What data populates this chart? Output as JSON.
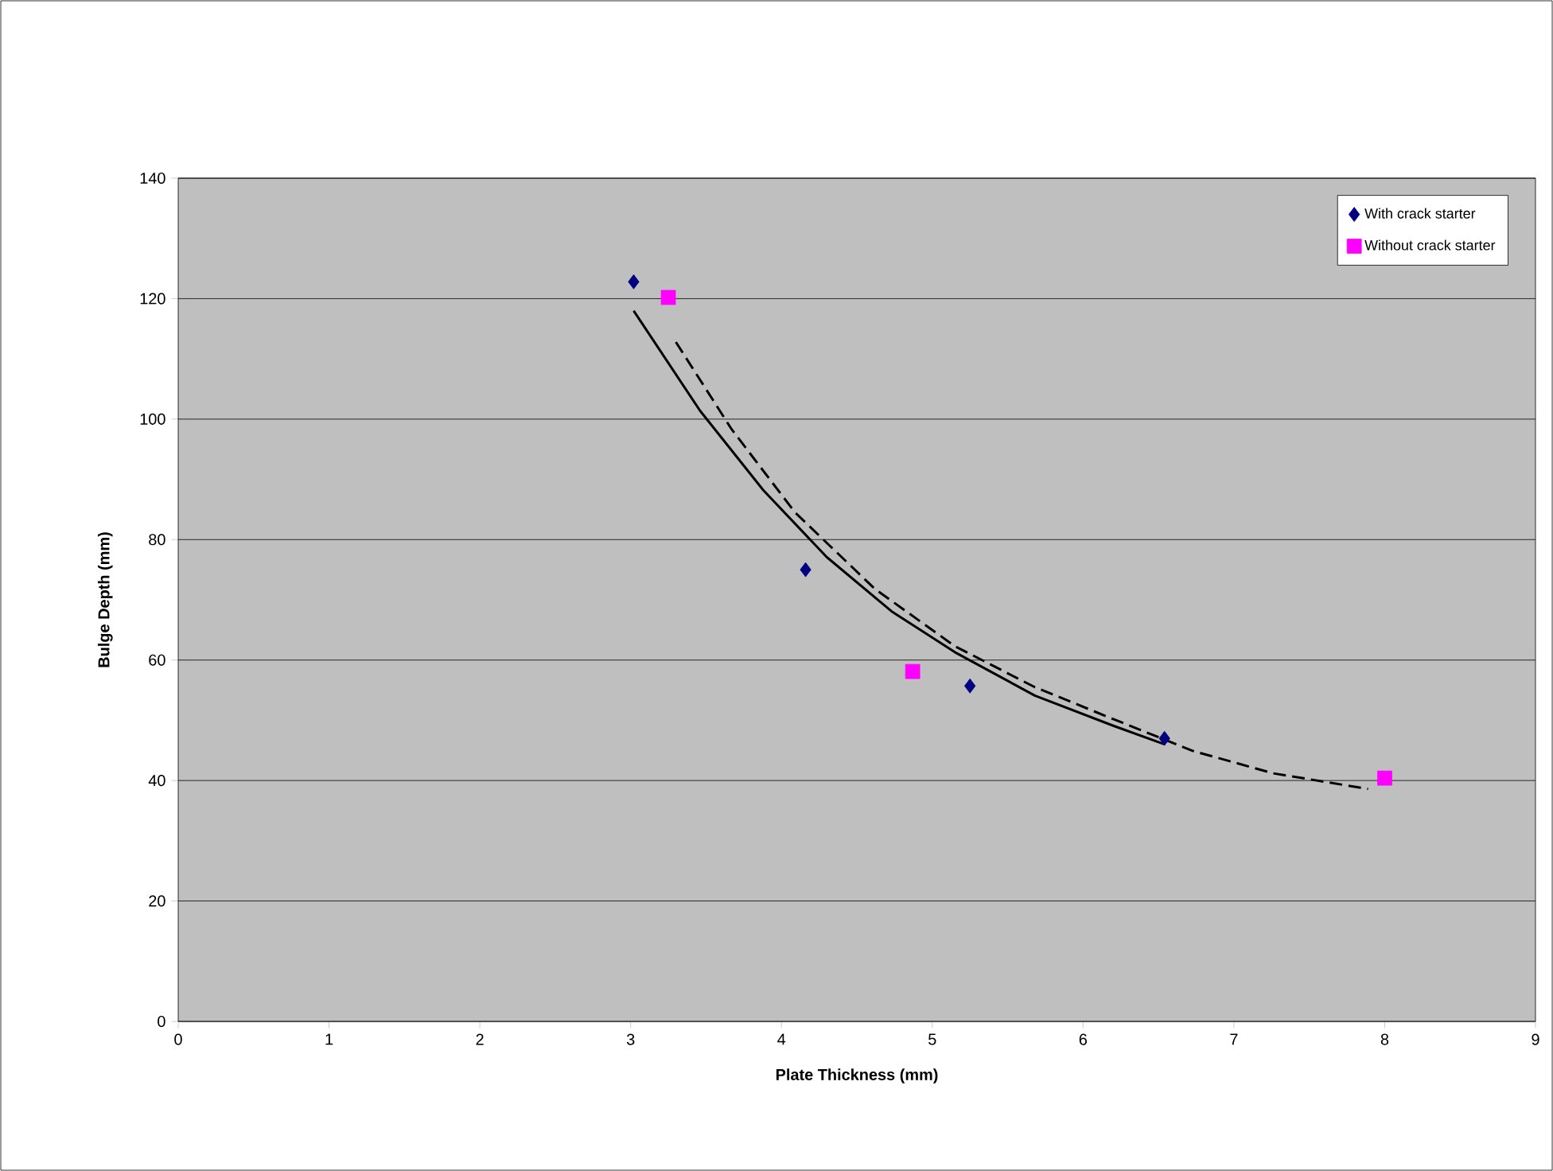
{
  "chart_data": {
    "type": "scatter",
    "xlabel": "Plate Thickness (mm)",
    "ylabel": "Bulge Depth (mm)",
    "xlim": [
      0,
      9
    ],
    "ylim": [
      0,
      140
    ],
    "xticks": [
      0,
      1,
      2,
      3,
      4,
      5,
      6,
      7,
      8,
      9
    ],
    "yticks": [
      0,
      20,
      40,
      60,
      80,
      100,
      120,
      140
    ],
    "grid": "y",
    "legend": "top right",
    "series": [
      {
        "name": "With crack starter",
        "color": "#000080",
        "marker": "diamond",
        "x": [
          3.02,
          4.16,
          5.25,
          6.54
        ],
        "values": [
          122.8,
          75,
          55.7,
          47
        ]
      },
      {
        "name": "Without crack starter",
        "color": "#ff00ff",
        "marker": "square",
        "x": [
          3.25,
          4.87,
          8.0
        ],
        "values": [
          120.2,
          58.1,
          40.4
        ]
      },
      {
        "type": "line",
        "color": "#000000",
        "marker": "none",
        "line_style": "solid",
        "x": [
          3.02,
          3.46,
          3.88,
          4.3,
          4.73,
          5.15,
          5.68,
          6.2,
          6.54
        ],
        "values": [
          118,
          101.4,
          88.2,
          77.1,
          68.1,
          61.3,
          54.1,
          49.1,
          46
        ]
      },
      {
        "type": "line",
        "color": "#000000",
        "marker": "none",
        "line_style": "dashed",
        "x": [
          3.3,
          3.67,
          4.09,
          4.62,
          5.15,
          5.68,
          6.2,
          6.73,
          7.26,
          7.89
        ],
        "values": [
          112.8,
          98.3,
          84.5,
          71.8,
          62.3,
          55.5,
          50.2,
          44.9,
          41.2,
          38.6
        ]
      }
    ]
  }
}
